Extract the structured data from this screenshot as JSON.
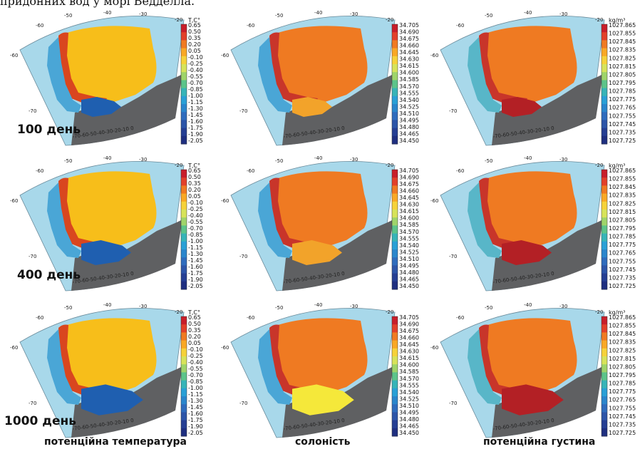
{
  "caption": "придонних вод у морі Ведделла.",
  "day_labels": [
    "100 день",
    "400 день",
    "1000 день"
  ],
  "column_titles": [
    "потенційна температура",
    "солоність",
    "потенційна густина"
  ],
  "grid_labels": {
    "lon_top": [
      "-60",
      "-50",
      "-40",
      "-30",
      "-20"
    ],
    "lat_left": [
      "-60",
      "-70"
    ],
    "lon_bottom": "-70-60-50-40-30-20-10 0"
  },
  "colorbars": {
    "temperature": {
      "unit": "T,C°",
      "ticks": [
        "0.65",
        "0.50",
        "0.35",
        "0.20",
        "0.05",
        "-0.10",
        "-0.25",
        "-0.40",
        "-0.55",
        "-0.70",
        "-0.85",
        "-1.00",
        "-1.15",
        "-1.30",
        "-1.45",
        "-1.60",
        "-1.75",
        "-1.90",
        "-2.05"
      ]
    },
    "salinity": {
      "unit": "",
      "ticks": [
        "34.705",
        "34.690",
        "34.675",
        "34.660",
        "34.645",
        "34.630",
        "34.615",
        "34.600",
        "34.585",
        "34.570",
        "34.555",
        "34.540",
        "34.525",
        "34.510",
        "34.495",
        "34.480",
        "34.465",
        "34.450"
      ]
    },
    "density": {
      "unit": "kg/m³",
      "ticks": [
        "1027.865",
        "1027.855",
        "1027.845",
        "1027.835",
        "1027.825",
        "1027.815",
        "1027.805",
        "1027.795",
        "1027.785",
        "1027.775",
        "1027.765",
        "1027.755",
        "1027.745",
        "1027.735",
        "1027.725"
      ]
    }
  },
  "colors": {
    "ocean_frame": "#a8d8ea",
    "land": "#5f6062",
    "temp_interior": "#f7be1a",
    "sal_interior": "#ef7a22",
    "dens_interior": "#ef7a22",
    "cold_blue": "#1f5fb0",
    "dense_red": "#b32025",
    "fresh_yellow": "#f5e83a"
  }
}
